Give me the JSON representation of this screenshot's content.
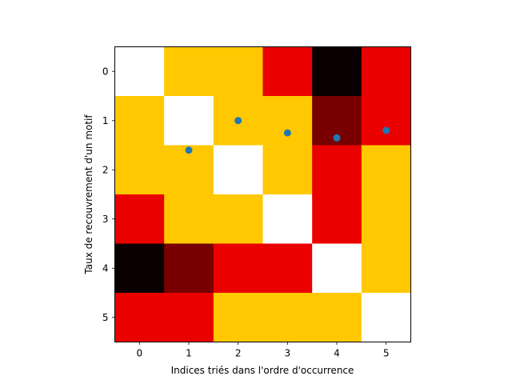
{
  "chart_data": {
    "type": "heatmap",
    "title": "",
    "xlabel": "Indices triés dans l'ordre d'occurrence",
    "ylabel": "Taux de recouvrement d'un motif",
    "x_ticks": [
      "0",
      "1",
      "2",
      "3",
      "4",
      "5"
    ],
    "y_ticks": [
      "0",
      "1",
      "2",
      "3",
      "4",
      "5"
    ],
    "xlim": [
      -0.5,
      5.5
    ],
    "ylim": [
      5.5,
      -0.5
    ],
    "grid": false,
    "color_scale": {
      "0": "#ffffff",
      "1": "#ffc800",
      "2": "#eb0000",
      "3": "#780000",
      "4": "#0a0000"
    },
    "matrix": [
      [
        0,
        1,
        1,
        2,
        4,
        2
      ],
      [
        1,
        0,
        1,
        1,
        3,
        2
      ],
      [
        1,
        1,
        0,
        1,
        2,
        1
      ],
      [
        2,
        1,
        1,
        0,
        2,
        1
      ],
      [
        4,
        3,
        2,
        2,
        0,
        1
      ],
      [
        2,
        2,
        1,
        1,
        1,
        0
      ]
    ],
    "scatter": {
      "color": "#1f77b4",
      "x": [
        1,
        2,
        3,
        4,
        5
      ],
      "y": [
        1.6,
        1.0,
        1.25,
        1.35,
        1.2
      ]
    }
  }
}
